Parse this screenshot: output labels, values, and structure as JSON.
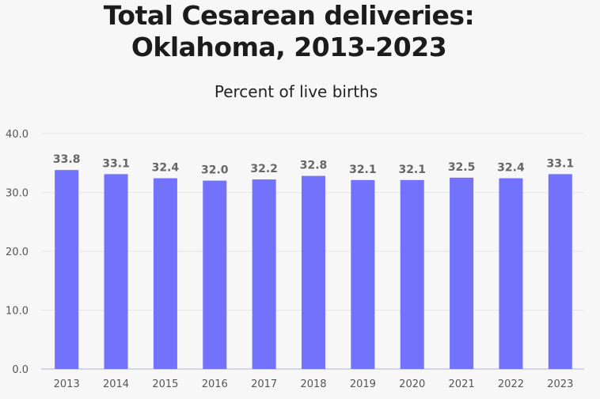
{
  "chart_data": {
    "type": "bar",
    "title": "Total Cesarean deliveries: Oklahoma, 2013-2023",
    "title_lines": [
      "Total Cesarean deliveries:",
      "Oklahoma, 2013-2023"
    ],
    "subtitle": "Percent of live births",
    "categories": [
      "2013",
      "2014",
      "2015",
      "2016",
      "2017",
      "2018",
      "2019",
      "2020",
      "2021",
      "2022",
      "2023"
    ],
    "values": [
      33.8,
      33.1,
      32.4,
      32.0,
      32.2,
      32.8,
      32.1,
      32.1,
      32.5,
      32.4,
      33.1
    ],
    "data_labels": [
      "33.8",
      "33.1",
      "32.4",
      "32.0",
      "32.2",
      "32.8",
      "32.1",
      "32.1",
      "32.5",
      "32.4",
      "33.1"
    ],
    "yticks": [
      "0.0",
      "10.0",
      "20.0",
      "30.0",
      "40.0"
    ],
    "ylim": [
      0,
      40
    ],
    "grid": true,
    "bar_color": "#7272fc"
  }
}
